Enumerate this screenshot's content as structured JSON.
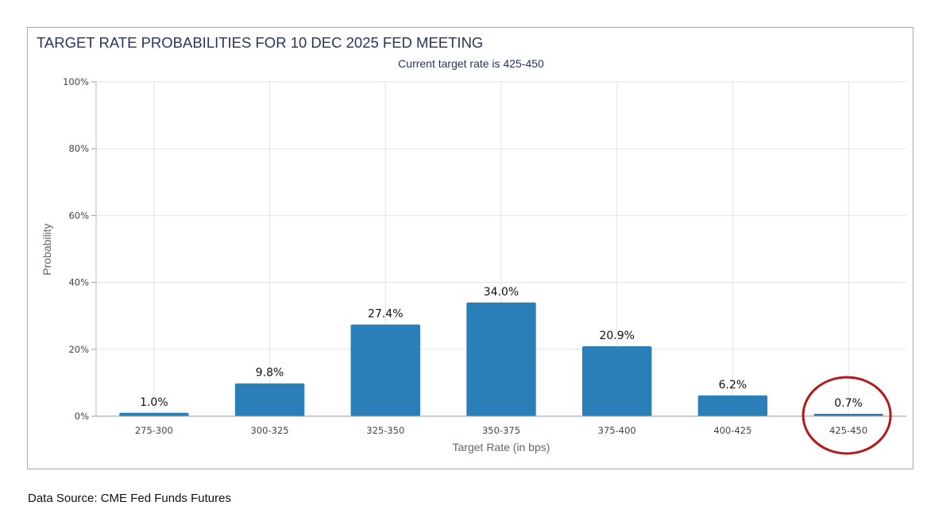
{
  "chart_data": {
    "type": "bar",
    "title": "TARGET RATE PROBABILITIES FOR 10 DEC 2025 FED MEETING",
    "subtitle": "Current target rate is 425-450",
    "xlabel": "Target Rate (in bps)",
    "ylabel": "Probability",
    "categories": [
      "275-300",
      "300-325",
      "325-350",
      "350-375",
      "375-400",
      "400-425",
      "425-450"
    ],
    "values": [
      1.0,
      9.8,
      27.4,
      34.0,
      20.9,
      6.2,
      0.7
    ],
    "value_labels": [
      "1.0%",
      "9.8%",
      "27.4%",
      "34.0%",
      "20.9%",
      "6.2%",
      "0.7%"
    ],
    "ylim": [
      0,
      100
    ],
    "yticks": [
      0,
      20,
      40,
      60,
      80,
      100
    ],
    "ytick_labels": [
      "0%",
      "20%",
      "40%",
      "60%",
      "80%",
      "100%"
    ],
    "grid": true,
    "legend": "none",
    "highlighted_category": "425-450",
    "colors": {
      "bar": "#2a7fb8",
      "title": "#27355f",
      "highlight_circle": "#b01c1c",
      "grid": "#e3e3e3"
    }
  },
  "footer": {
    "source": "Data Source: CME Fed Funds Futures"
  }
}
